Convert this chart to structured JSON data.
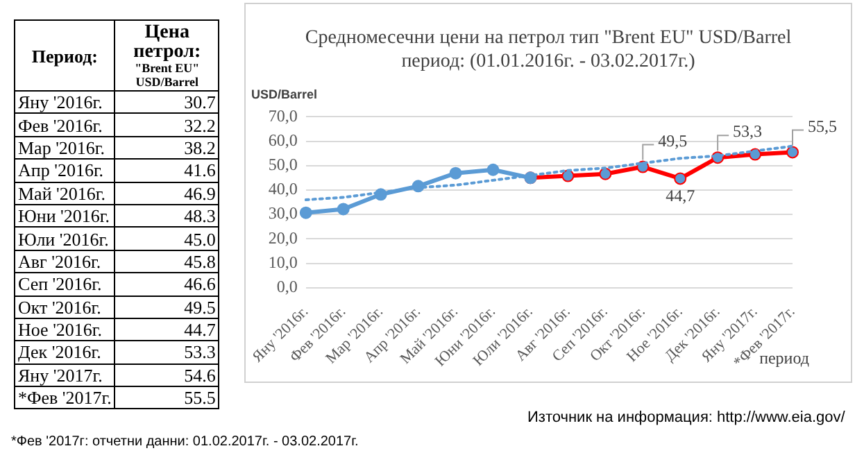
{
  "chart_data": [
    {
      "type": "other",
      "annotations": [
        "Период:",
        "Цена петрол:",
        "\"Brent EU\" USD/Barrel"
      ],
      "categories": [
        "Яну '2016г.",
        "Фев '2016г.",
        "Мар '2016г.",
        "Апр '2016г.",
        "Май '2016г.",
        "Юни '2016г.",
        "Юли '2016г.",
        "Авг '2016г.",
        "Сеп '2016г.",
        "Окт '2016г.",
        "Ное '2016г.",
        "Дек '2016г.",
        "Яну '2017г.",
        "*Фев '2017г."
      ],
      "value_labels": [
        "30.7",
        "32.2",
        "38.2",
        "41.6",
        "46.9",
        "48.3",
        "45.0",
        "45.8",
        "46.6",
        "49.5",
        "44.7",
        "53.3",
        "54.6",
        "55.5"
      ]
    },
    {
      "type": "line",
      "title": "Средномесечни цени на петрол тип \"Brent EU\" USD/Barrel",
      "subtitle": "период: (01.01.2016г. - 03.02.2017г.)",
      "ylabel": "USD/Barrel",
      "xlabel": "период",
      "categories": [
        "Яну '2016г.",
        "Фев '2016г.",
        "Мар '2016г.",
        "Апр '2016г.",
        "Май '2016г.",
        "Юни '2016г.",
        "Юли '2016г.",
        "Авг '2016г.",
        "Сеп '2016г.",
        "Окт '2016г.",
        "Ное '2016г.",
        "Дек '2016г.",
        "Яну '2017г.",
        "*Фев '2017г."
      ],
      "series": [
        {
          "color": "#5b9bd5",
          "values": [
            30.7,
            32.2,
            38.2,
            41.6,
            46.9,
            48.3,
            45.0,
            null,
            null,
            null,
            null,
            null,
            null,
            null
          ]
        },
        {
          "color": "#ff0000",
          "values": [
            null,
            null,
            null,
            null,
            null,
            null,
            45.0,
            45.8,
            46.6,
            49.5,
            44.7,
            53.3,
            54.6,
            55.5
          ],
          "value_labels": [
            null,
            null,
            null,
            null,
            null,
            null,
            null,
            null,
            null,
            "49,5",
            "44,7",
            "53,3",
            null,
            "55,5"
          ]
        },
        {
          "type": "line",
          "color": "#5b9bd5",
          "line_style": "dotted",
          "marker": "none",
          "values": [
            36,
            37,
            39,
            41,
            42,
            44,
            46,
            48,
            49,
            51,
            53,
            54,
            56,
            58
          ]
        }
      ],
      "ylim": [
        0,
        70
      ],
      "yticks": [
        {
          "value": 0,
          "label": "0,0"
        },
        {
          "value": 10,
          "label": "10,0"
        },
        {
          "value": 20,
          "label": "20,0"
        },
        {
          "value": 30,
          "label": "30,0"
        },
        {
          "value": 40,
          "label": "40,0"
        },
        {
          "value": 50,
          "label": "50,0"
        },
        {
          "value": 60,
          "label": "60,0"
        },
        {
          "value": 70,
          "label": "70,0"
        }
      ],
      "grid": "y",
      "legend": false,
      "marker": "circle",
      "line_style": "solid",
      "annotations": [
        "Източник на информация: http://www.eia.gov/",
        "*Фев '2017г: отчетни данни: 01.02.2017г. - 03.02.2017г."
      ]
    }
  ]
}
